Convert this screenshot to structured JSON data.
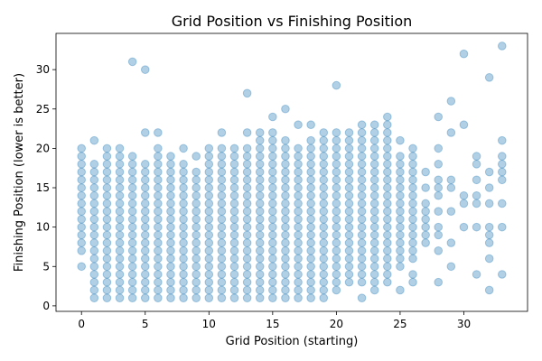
{
  "chart_data": {
    "type": "scatter",
    "title": "Grid Position vs Finishing Position",
    "xlabel": "Grid Position (starting)",
    "ylabel": "Finishing Position (lower is better)",
    "xlim": [
      -2,
      35
    ],
    "ylim": [
      -0.7,
      34.6
    ],
    "xticks": [
      0,
      5,
      10,
      15,
      20,
      25,
      30
    ],
    "yticks": [
      0,
      5,
      10,
      15,
      20,
      25,
      30
    ],
    "grid": false,
    "legend": "none",
    "marker": "circle",
    "color": "#1f77b4",
    "alpha": 0.35,
    "columns": [
      {
        "x": 0,
        "y": [
          5,
          7,
          8,
          9,
          10,
          11,
          12,
          13,
          14,
          15,
          16,
          17,
          18,
          19,
          20
        ]
      },
      {
        "x": 1,
        "y": [
          1,
          2,
          3,
          4,
          5,
          6,
          7,
          8,
          9,
          10,
          11,
          12,
          13,
          14,
          15,
          16,
          17,
          18,
          21
        ]
      },
      {
        "x": 2,
        "y": [
          1,
          2,
          3,
          4,
          5,
          6,
          7,
          8,
          9,
          10,
          11,
          12,
          13,
          14,
          15,
          16,
          17,
          18,
          19,
          20
        ]
      },
      {
        "x": 3,
        "y": [
          1,
          2,
          3,
          4,
          5,
          6,
          7,
          8,
          9,
          10,
          11,
          12,
          13,
          14,
          15,
          16,
          17,
          18,
          19,
          20
        ]
      },
      {
        "x": 4,
        "y": [
          1,
          2,
          3,
          4,
          5,
          6,
          7,
          8,
          9,
          10,
          11,
          12,
          13,
          14,
          15,
          16,
          17,
          18,
          19,
          31
        ]
      },
      {
        "x": 5,
        "y": [
          1,
          2,
          3,
          4,
          5,
          6,
          7,
          8,
          9,
          10,
          11,
          12,
          13,
          14,
          15,
          16,
          17,
          18,
          22,
          30
        ]
      },
      {
        "x": 6,
        "y": [
          1,
          2,
          3,
          4,
          5,
          6,
          7,
          8,
          9,
          10,
          11,
          12,
          13,
          14,
          15,
          16,
          17,
          18,
          19,
          20,
          22
        ]
      },
      {
        "x": 7,
        "y": [
          1,
          2,
          3,
          4,
          5,
          6,
          7,
          8,
          9,
          10,
          11,
          12,
          13,
          14,
          15,
          16,
          17,
          18,
          19
        ]
      },
      {
        "x": 8,
        "y": [
          1,
          2,
          3,
          4,
          5,
          6,
          7,
          8,
          9,
          10,
          11,
          12,
          13,
          14,
          15,
          16,
          17,
          18,
          20
        ]
      },
      {
        "x": 9,
        "y": [
          1,
          2,
          3,
          4,
          5,
          6,
          7,
          8,
          9,
          10,
          11,
          12,
          13,
          14,
          15,
          16,
          17,
          19
        ]
      },
      {
        "x": 10,
        "y": [
          1,
          2,
          3,
          4,
          5,
          6,
          7,
          8,
          9,
          10,
          11,
          12,
          13,
          14,
          15,
          16,
          17,
          18,
          19,
          20
        ]
      },
      {
        "x": 11,
        "y": [
          1,
          2,
          3,
          4,
          5,
          6,
          7,
          8,
          9,
          10,
          11,
          12,
          13,
          14,
          15,
          16,
          17,
          18,
          19,
          20,
          22
        ]
      },
      {
        "x": 12,
        "y": [
          1,
          2,
          3,
          4,
          5,
          6,
          7,
          8,
          9,
          10,
          11,
          12,
          13,
          14,
          15,
          16,
          17,
          18,
          19,
          20
        ]
      },
      {
        "x": 13,
        "y": [
          1,
          2,
          3,
          4,
          5,
          6,
          7,
          8,
          9,
          10,
          11,
          12,
          13,
          14,
          15,
          16,
          17,
          18,
          19,
          20,
          22,
          27
        ]
      },
      {
        "x": 14,
        "y": [
          1,
          2,
          3,
          4,
          5,
          6,
          7,
          8,
          9,
          10,
          11,
          12,
          13,
          14,
          15,
          16,
          17,
          18,
          19,
          20,
          21,
          22
        ]
      },
      {
        "x": 15,
        "y": [
          1,
          2,
          3,
          4,
          5,
          6,
          7,
          8,
          9,
          10,
          11,
          12,
          13,
          14,
          15,
          16,
          17,
          18,
          19,
          20,
          21,
          22,
          24
        ]
      },
      {
        "x": 16,
        "y": [
          1,
          2,
          3,
          4,
          5,
          6,
          7,
          8,
          9,
          10,
          11,
          12,
          13,
          14,
          15,
          16,
          17,
          18,
          19,
          20,
          21,
          25
        ]
      },
      {
        "x": 17,
        "y": [
          1,
          2,
          3,
          4,
          5,
          6,
          7,
          8,
          9,
          10,
          11,
          12,
          13,
          14,
          15,
          16,
          17,
          18,
          19,
          20,
          23
        ]
      },
      {
        "x": 18,
        "y": [
          1,
          2,
          3,
          4,
          5,
          6,
          7,
          8,
          9,
          10,
          11,
          12,
          13,
          14,
          15,
          16,
          17,
          18,
          19,
          20,
          21,
          23
        ]
      },
      {
        "x": 19,
        "y": [
          1,
          2,
          3,
          4,
          5,
          6,
          7,
          8,
          9,
          10,
          11,
          12,
          13,
          14,
          15,
          16,
          17,
          18,
          19,
          20,
          21,
          22
        ]
      },
      {
        "x": 20,
        "y": [
          2,
          3,
          4,
          5,
          6,
          7,
          8,
          9,
          10,
          11,
          12,
          13,
          14,
          15,
          16,
          17,
          18,
          19,
          20,
          21,
          22,
          28
        ]
      },
      {
        "x": 21,
        "y": [
          3,
          4,
          5,
          6,
          7,
          8,
          9,
          10,
          11,
          12,
          13,
          14,
          15,
          16,
          17,
          18,
          19,
          20,
          21,
          22
        ]
      },
      {
        "x": 22,
        "y": [
          1,
          3,
          4,
          5,
          6,
          7,
          8,
          9,
          10,
          11,
          12,
          13,
          14,
          15,
          16,
          17,
          18,
          19,
          20,
          21,
          22,
          23
        ]
      },
      {
        "x": 23,
        "y": [
          2,
          3,
          4,
          5,
          6,
          7,
          8,
          9,
          10,
          11,
          12,
          13,
          14,
          15,
          16,
          17,
          18,
          19,
          20,
          21,
          22,
          23
        ]
      },
      {
        "x": 24,
        "y": [
          3,
          4,
          5,
          6,
          7,
          8,
          9,
          10,
          11,
          12,
          13,
          14,
          15,
          16,
          17,
          18,
          19,
          20,
          21,
          22,
          23,
          24
        ]
      },
      {
        "x": 25,
        "y": [
          2,
          5,
          6,
          7,
          8,
          9,
          10,
          11,
          12,
          13,
          14,
          15,
          16,
          17,
          18,
          19,
          21
        ]
      },
      {
        "x": 26,
        "y": [
          3,
          4,
          6,
          7,
          8,
          9,
          10,
          11,
          12,
          13,
          14,
          15,
          16,
          17,
          18,
          19,
          20
        ]
      },
      {
        "x": 27,
        "y": [
          8,
          9,
          10,
          11,
          12,
          13,
          15,
          17
        ]
      },
      {
        "x": 28,
        "y": [
          3,
          7,
          9,
          10,
          12,
          14,
          15,
          16,
          18,
          20,
          24
        ]
      },
      {
        "x": 29,
        "y": [
          5,
          8,
          12,
          15,
          16,
          22,
          26
        ]
      },
      {
        "x": 30,
        "y": [
          10,
          13,
          14,
          23,
          32
        ]
      },
      {
        "x": 31,
        "y": [
          4,
          10,
          13,
          14,
          16,
          18,
          19
        ]
      },
      {
        "x": 32,
        "y": [
          2,
          6,
          8,
          9,
          10,
          13,
          15,
          17,
          29
        ]
      },
      {
        "x": 33,
        "y": [
          4,
          10,
          13,
          16,
          17,
          18,
          19,
          21,
          33
        ]
      }
    ]
  }
}
